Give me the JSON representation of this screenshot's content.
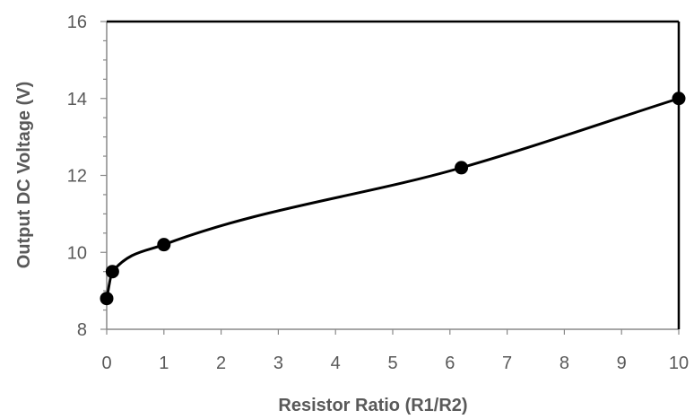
{
  "chart_data": {
    "type": "line",
    "title": "",
    "xlabel": "Resistor Ratio (R1/R2)",
    "ylabel": "Output DC Voltage (V)",
    "xlim": [
      0,
      10
    ],
    "ylim": [
      8,
      16
    ],
    "x_ticks": [
      "0",
      "1",
      "2",
      "3",
      "4",
      "5",
      "6",
      "7",
      "8",
      "9",
      "10"
    ],
    "y_ticks": [
      "8",
      "10",
      "12",
      "14",
      "16"
    ],
    "grid": false,
    "legend": "none",
    "line_color": "#000000",
    "marker": "circle",
    "series": [
      {
        "x": [
          0,
          0.1,
          1,
          6.2,
          10
        ],
        "y": [
          8.8,
          9.5,
          10.2,
          12.2,
          14.0
        ]
      }
    ]
  }
}
